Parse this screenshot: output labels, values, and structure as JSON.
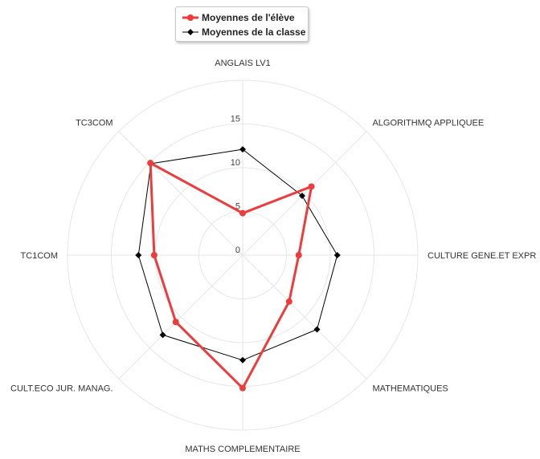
{
  "chart_data": {
    "type": "radar",
    "categories": [
      "ANGLAIS LV1",
      "ALGORITHMQ APPLIQUEE",
      "CULTURE GENE.ET EXPR",
      "MATHEMATIQUES",
      "MATHS COMPLEMENTAIRE",
      "CULT.ECO JUR. MANAG.",
      "TC1COM",
      "TC3COM"
    ],
    "series": [
      {
        "name": "Moyennes de l'élève",
        "color": "#ee3b3b",
        "values": [
          4.8,
          11.1,
          6.4,
          7.5,
          15.2,
          10.8,
          10.1,
          14.9
        ]
      },
      {
        "name": "Moyennes de la classe",
        "color": "#000000",
        "values": [
          12.1,
          9.6,
          10.8,
          12.0,
          12.0,
          12.9,
          11.9,
          14.8
        ]
      }
    ],
    "ticks": [
      0,
      5,
      10,
      15
    ],
    "rmax": 20,
    "grid": true,
    "legend_position": "top-left"
  }
}
